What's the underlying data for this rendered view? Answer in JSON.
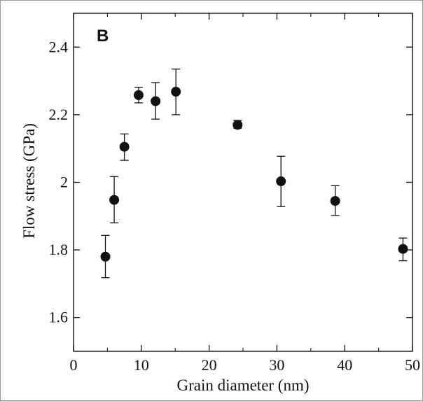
{
  "chart_data": {
    "type": "scatter",
    "panel_label": "B",
    "xlabel": "Grain diameter (nm)",
    "ylabel": "Flow stress (GPa)",
    "xlim": [
      0,
      50
    ],
    "ylim": [
      1.5,
      2.5
    ],
    "xticks": [
      0,
      10,
      20,
      30,
      40,
      50
    ],
    "yticks": [
      1.6,
      1.8,
      2.0,
      2.2,
      2.4
    ],
    "xtick_labels": [
      "0",
      "10",
      "20",
      "30",
      "40",
      "50"
    ],
    "ytick_labels": [
      "1.6",
      "1.8",
      "2",
      "2.2",
      "2.4"
    ],
    "grid": false,
    "series": [
      {
        "points": [
          {
            "x": 4.7,
            "y": 1.78,
            "err_low": 1.718,
            "err_high": 1.843
          },
          {
            "x": 6.0,
            "y": 1.948,
            "err_low": 1.88,
            "err_high": 2.017
          },
          {
            "x": 7.5,
            "y": 2.105,
            "err_low": 2.065,
            "err_high": 2.143
          },
          {
            "x": 9.6,
            "y": 2.258,
            "err_low": 2.235,
            "err_high": 2.281
          },
          {
            "x": 12.1,
            "y": 2.24,
            "err_low": 2.187,
            "err_high": 2.295
          },
          {
            "x": 15.1,
            "y": 2.268,
            "err_low": 2.2,
            "err_high": 2.335
          },
          {
            "x": 24.2,
            "y": 2.17,
            "err_low": 2.16,
            "err_high": 2.183
          },
          {
            "x": 30.6,
            "y": 2.003,
            "err_low": 1.928,
            "err_high": 2.077
          },
          {
            "x": 38.6,
            "y": 1.945,
            "err_low": 1.902,
            "err_high": 1.99
          },
          {
            "x": 48.6,
            "y": 1.803,
            "err_low": 1.768,
            "err_high": 1.835
          }
        ]
      }
    ],
    "colors": {
      "markers": "#111111",
      "axes": "#111111"
    }
  }
}
